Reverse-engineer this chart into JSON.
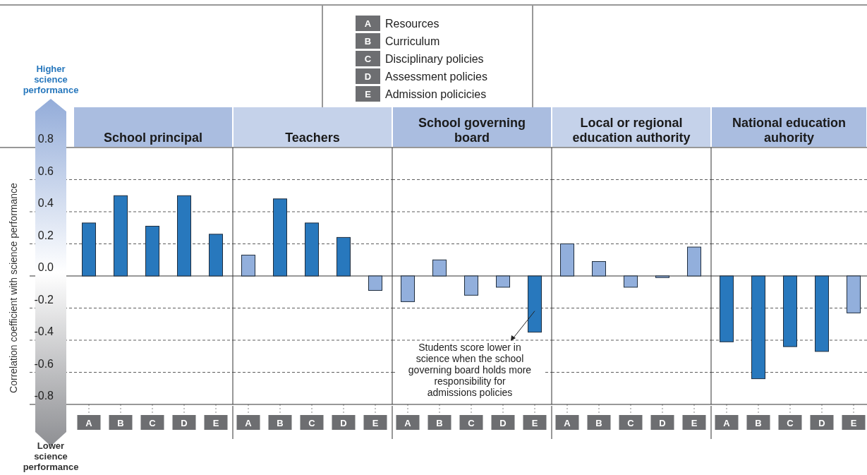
{
  "chart_data": [
    {
      "type": "bar",
      "title": "School principal",
      "categories": [
        "A",
        "B",
        "C",
        "D",
        "E"
      ],
      "values": [
        0.33,
        0.5,
        0.31,
        0.5,
        0.26
      ],
      "colors": [
        "#2878bd",
        "#2878bd",
        "#2878bd",
        "#2878bd",
        "#2878bd"
      ],
      "ylim": [
        -0.8,
        0.8
      ],
      "yticks": [
        {
          "value": -0.8,
          "label": "-0.8"
        },
        {
          "value": -0.6,
          "label": "-0.6"
        },
        {
          "value": -0.4,
          "label": "-0.4"
        },
        {
          "value": -0.2,
          "label": "-0.2"
        },
        {
          "value": 0,
          "label": "0.0"
        },
        {
          "value": 0.2,
          "label": "0.2"
        },
        {
          "value": 0.4,
          "label": "0.4"
        },
        {
          "value": 0.6,
          "label": "0.6"
        },
        {
          "value": 0.8,
          "label": "0.8"
        }
      ],
      "ylabel": "Correlation coefficient with science performance",
      "annotations": [
        "Higher science performance",
        "Lower science performance"
      ],
      "grid": "y"
    },
    {
      "type": "bar",
      "title": "Teachers",
      "categories": [
        "A",
        "B",
        "C",
        "D",
        "E"
      ],
      "values": [
        0.13,
        0.48,
        0.33,
        0.24,
        -0.09
      ],
      "colors": [
        "#92afdc",
        "#2878bd",
        "#2878bd",
        "#2878bd",
        "#92afdc"
      ],
      "ylim": [
        -0.8,
        0.8
      ],
      "yticks": [
        -0.8,
        -0.6,
        -0.4,
        -0.2,
        0,
        0.2,
        0.4,
        0.6,
        0.8
      ],
      "tick_labels": "x",
      "grid": "y"
    },
    {
      "type": "bar",
      "title": "School governing board",
      "categories": [
        "A",
        "B",
        "C",
        "D",
        "E"
      ],
      "values": [
        -0.16,
        0.1,
        -0.12,
        -0.07,
        -0.35
      ],
      "colors": [
        "#92afdc",
        "#92afdc",
        "#92afdc",
        "#92afdc",
        "#2878bd"
      ],
      "ylim": [
        -0.8,
        0.8
      ],
      "yticks": [
        -0.8,
        -0.6,
        -0.4,
        -0.2,
        0,
        0.2,
        0.4,
        0.6,
        0.8
      ],
      "tick_labels": "x",
      "grid": "y",
      "annotations": [
        "Resources",
        "Curriculum",
        "Disciplinary policies",
        "Assessment policies",
        "Admission policicies",
        {
          "text": "Students score lower in science when the school governing board holds more responsibility for admissions policies",
          "x": "E",
          "y": -0.35
        }
      ]
    },
    {
      "type": "bar",
      "title": "Local or regional education authority",
      "categories": [
        "A",
        "B",
        "C",
        "D",
        "E"
      ],
      "values": [
        0.2,
        0.09,
        -0.07,
        -0.01,
        0.18
      ],
      "colors": [
        "#92afdc",
        "#92afdc",
        "#92afdc",
        "#92afdc",
        "#92afdc"
      ],
      "ylim": [
        -0.8,
        0.8
      ],
      "yticks": [
        -0.8,
        -0.6,
        -0.4,
        -0.2,
        0,
        0.2,
        0.4,
        0.6,
        0.8
      ],
      "tick_labels": "x",
      "grid": "y"
    },
    {
      "type": "bar",
      "title": "National education auhority",
      "categories": [
        "A",
        "B",
        "C",
        "D",
        "E"
      ],
      "values": [
        -0.41,
        -0.64,
        -0.44,
        -0.47,
        -0.23
      ],
      "colors": [
        "#2878bd",
        "#2878bd",
        "#2878bd",
        "#2878bd",
        "#92afdc"
      ],
      "ylim": [
        -0.8,
        0.8
      ],
      "yticks": [
        -0.8,
        -0.6,
        -0.4,
        -0.2,
        0,
        0.2,
        0.4,
        0.6,
        0.8
      ],
      "tick_labels": "x",
      "grid": "y"
    }
  ]
}
